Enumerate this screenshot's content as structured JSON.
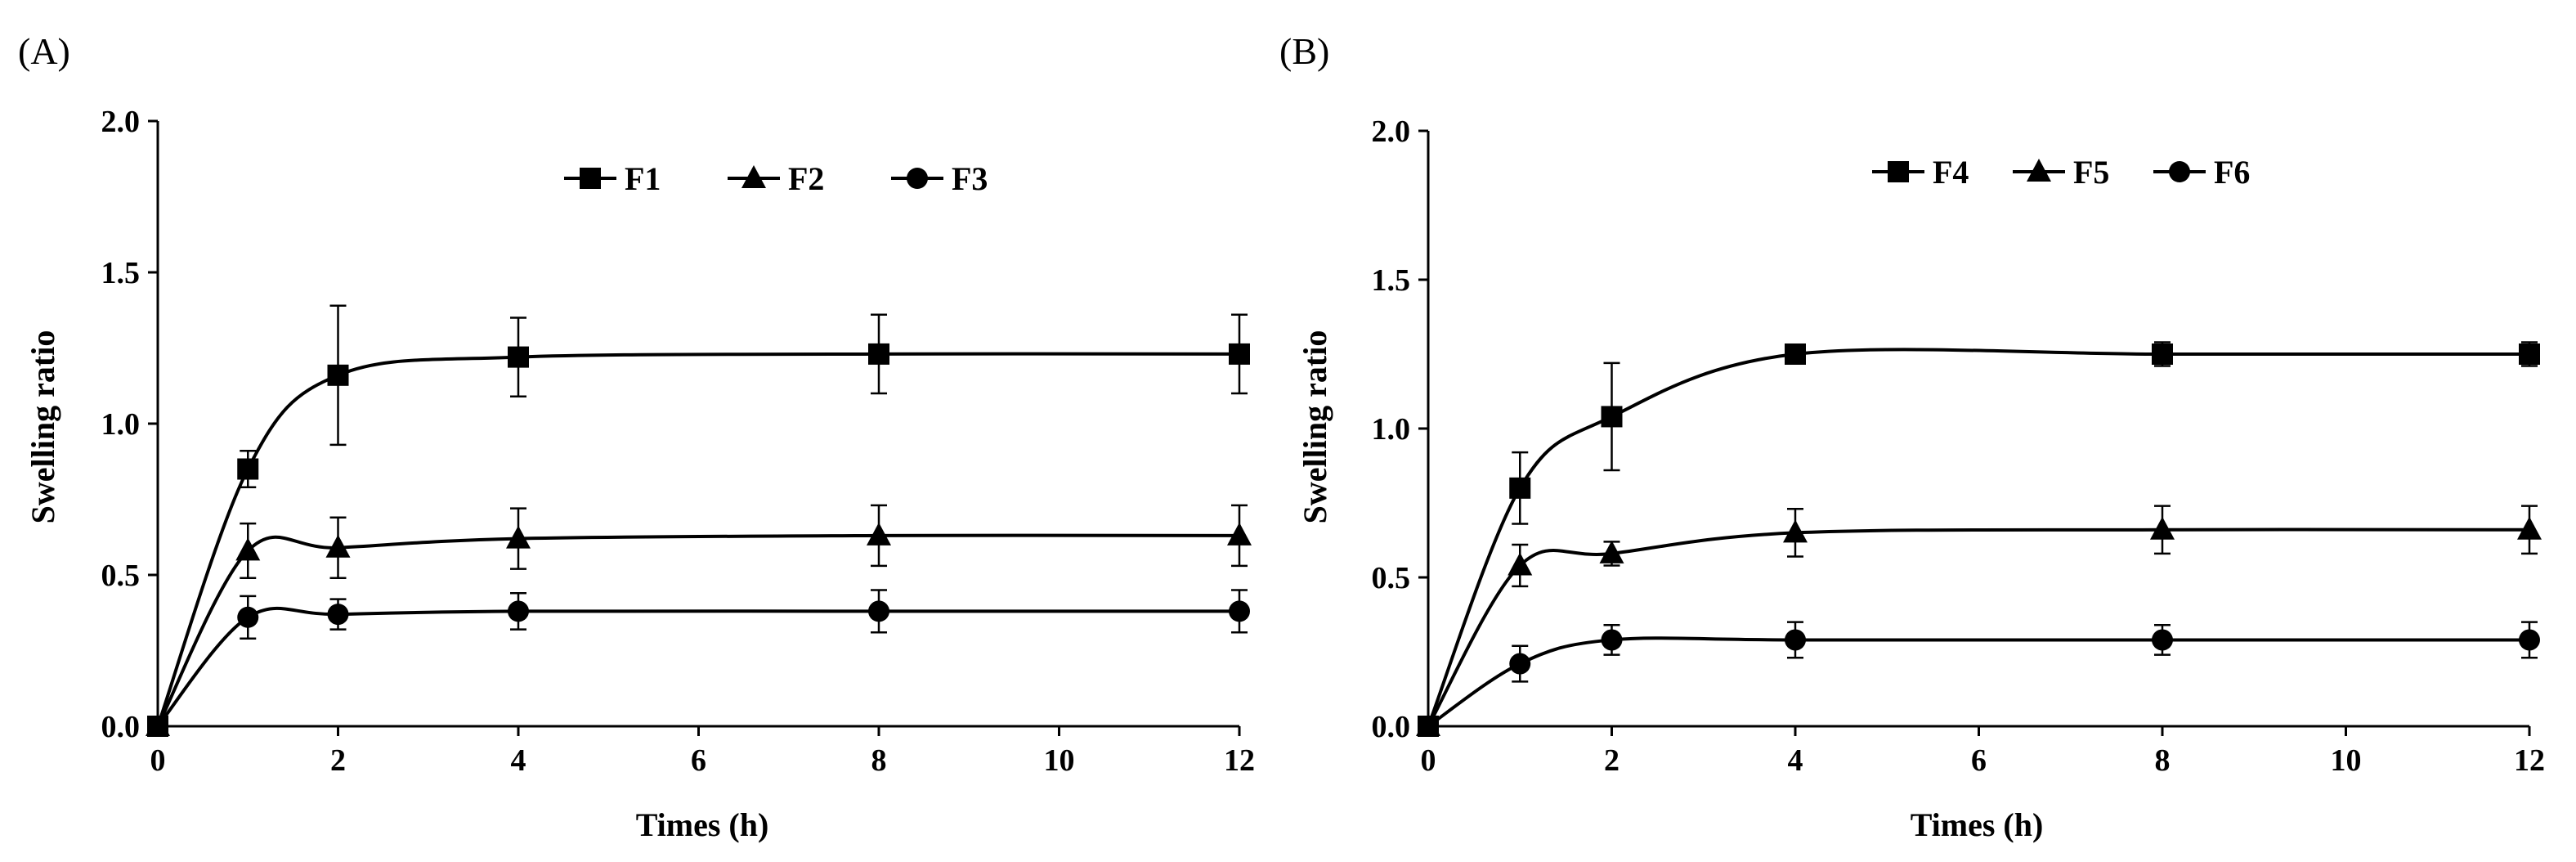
{
  "chart_data": [
    {
      "panel_label": "(A)",
      "type": "line",
      "xlabel": "Times (h)",
      "ylabel": "Swelling ratio",
      "xlim": [
        0,
        12
      ],
      "ylim": [
        0,
        2.0
      ],
      "xticks": [
        0,
        2,
        4,
        6,
        8,
        10,
        12
      ],
      "yticks": [
        "0.0",
        "0.5",
        "1.0",
        "1.5",
        "2.0"
      ],
      "legend_position": "top",
      "x": [
        0,
        1,
        2,
        4,
        8,
        12
      ],
      "series": [
        {
          "name": "F1",
          "marker": "square",
          "values": [
            0.0,
            0.85,
            1.16,
            1.22,
            1.23,
            1.23
          ],
          "errors": [
            0.0,
            0.06,
            0.23,
            0.13,
            0.13,
            0.13
          ]
        },
        {
          "name": "F2",
          "marker": "triangle",
          "values": [
            0.0,
            0.58,
            0.59,
            0.62,
            0.63,
            0.63
          ],
          "errors": [
            0.0,
            0.09,
            0.1,
            0.1,
            0.1,
            0.1
          ]
        },
        {
          "name": "F3",
          "marker": "circle",
          "values": [
            0.0,
            0.36,
            0.37,
            0.38,
            0.38,
            0.38
          ],
          "errors": [
            0.0,
            0.07,
            0.05,
            0.06,
            0.07,
            0.07
          ]
        }
      ]
    },
    {
      "panel_label": "(B)",
      "type": "line",
      "xlabel": "Times (h)",
      "ylabel": "Swelling ratio",
      "xlim": [
        0,
        12
      ],
      "ylim": [
        0,
        2.0
      ],
      "xticks": [
        0,
        2,
        4,
        6,
        8,
        10,
        12
      ],
      "yticks": [
        "0.0",
        "0.5",
        "1.0",
        "1.5",
        "2.0"
      ],
      "legend_position": "top",
      "x": [
        0,
        1,
        2,
        4,
        8,
        12
      ],
      "series": [
        {
          "name": "F4",
          "marker": "square",
          "values": [
            0.0,
            0.8,
            1.04,
            1.25,
            1.25,
            1.25
          ],
          "errors": [
            0.0,
            0.12,
            0.18,
            0.03,
            0.04,
            0.04
          ]
        },
        {
          "name": "F5",
          "marker": "triangle",
          "values": [
            0.0,
            0.54,
            0.58,
            0.65,
            0.66,
            0.66
          ],
          "errors": [
            0.0,
            0.07,
            0.04,
            0.08,
            0.08,
            0.08
          ]
        },
        {
          "name": "F6",
          "marker": "circle",
          "values": [
            0.0,
            0.21,
            0.29,
            0.29,
            0.29,
            0.29
          ],
          "errors": [
            0.0,
            0.06,
            0.05,
            0.06,
            0.05,
            0.06
          ]
        }
      ]
    }
  ]
}
